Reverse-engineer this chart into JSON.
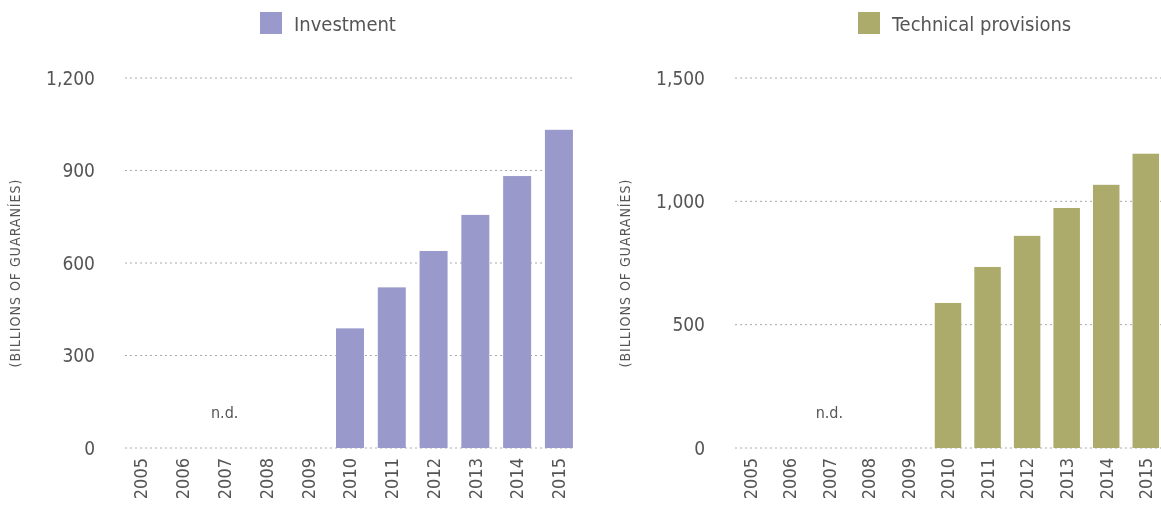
{
  "chart_data": [
    {
      "type": "bar",
      "categories": [
        "2005",
        "2006",
        "2007",
        "2008",
        "2009",
        "2010",
        "2011",
        "2012",
        "2013",
        "2014",
        "2015"
      ],
      "series": [
        {
          "name": "Investment",
          "color": "#9999cc",
          "values": [
            null,
            null,
            null,
            null,
            null,
            388,
            521,
            639,
            756,
            882,
            1032
          ]
        }
      ],
      "ylabel": "(BILLIONS OF GUARANÍES)",
      "ylim": [
        0,
        1200
      ],
      "yticks": [
        0,
        {
          "value": 300,
          "label": "300"
        },
        {
          "value": 600,
          "label": "600"
        },
        {
          "value": 900,
          "label": "900"
        },
        {
          "value": 1200,
          "label": "1,200"
        }
      ],
      "grid": "y",
      "legend": "top",
      "annotations": [
        "n.d."
      ]
    },
    {
      "type": "bar",
      "categories": [
        "2005",
        "2006",
        "2007",
        "2008",
        "2009",
        "2010",
        "2011",
        "2012",
        "2013",
        "2014",
        "2015"
      ],
      "series": [
        {
          "name": "Technical provisions",
          "color": "#adab6c",
          "values": [
            null,
            null,
            null,
            null,
            null,
            588,
            734,
            860,
            973,
            1067,
            1193
          ]
        }
      ],
      "ylabel": "(BILLIONS OF GUARANÍES)",
      "ylim": [
        0,
        1500
      ],
      "yticks": [
        0,
        {
          "value": 500,
          "label": "500"
        },
        {
          "value": 1000,
          "label": "1,000"
        },
        {
          "value": 1500,
          "label": "1,500"
        }
      ],
      "grid": "y",
      "legend": "top",
      "annotations": [
        "n.d."
      ]
    }
  ]
}
